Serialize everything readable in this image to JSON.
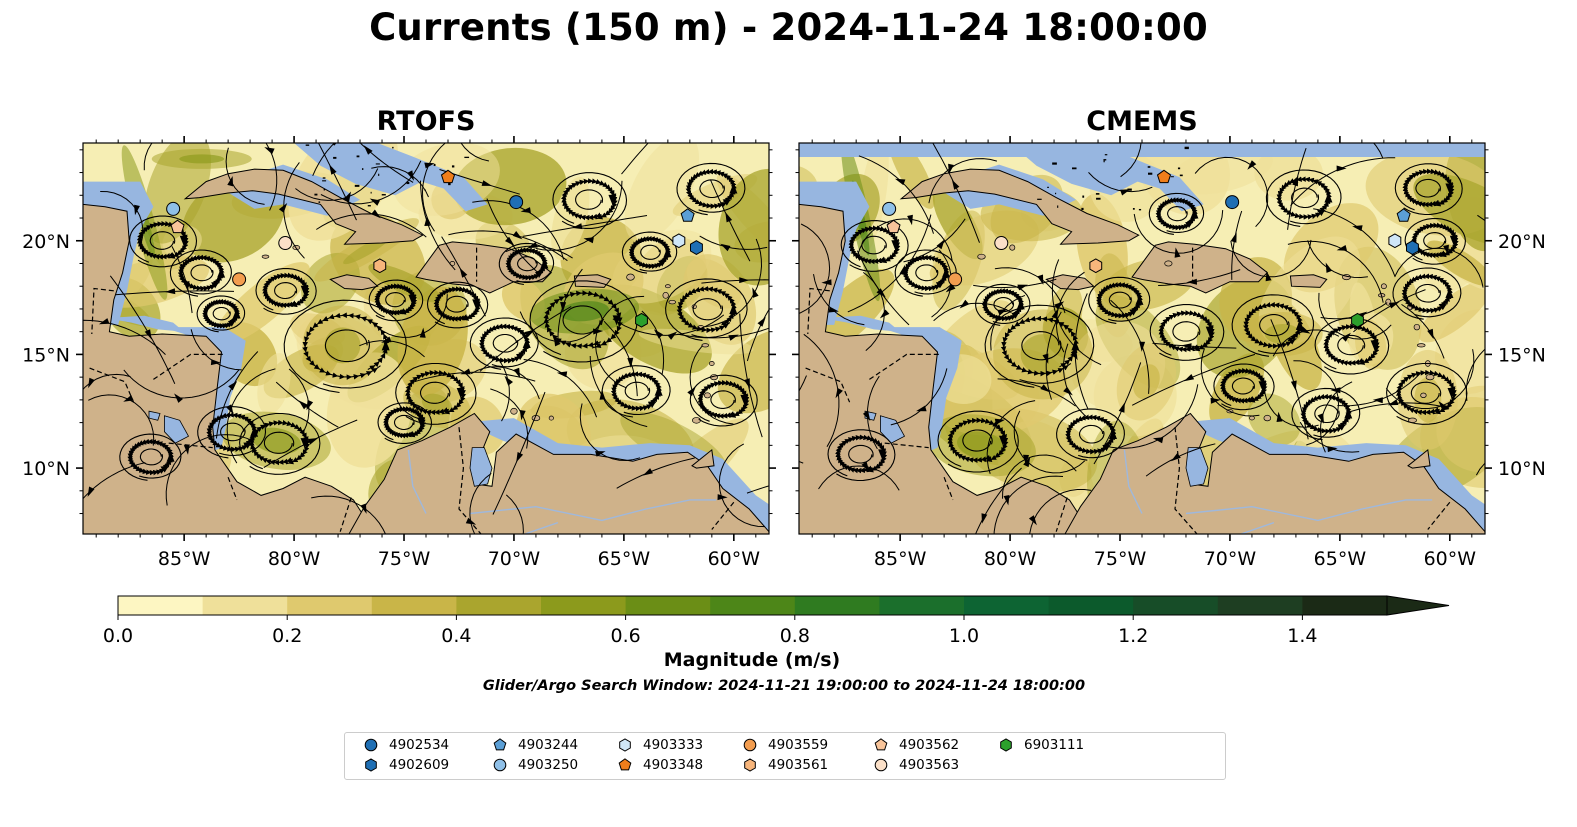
{
  "title": "Currents (150 m) - 2024-11-24 18:00:00",
  "panels": [
    {
      "title": "RTOFS"
    },
    {
      "title": "CMEMS"
    }
  ],
  "axes": {
    "lon_ticks": [
      "85°W",
      "80°W",
      "75°W",
      "70°W",
      "65°W",
      "60°W"
    ],
    "lat_ticks": [
      "20°N",
      "15°N",
      "10°N"
    ]
  },
  "colorbar": {
    "title": "Magnitude (m/s)",
    "tick_labels": [
      "0.0",
      "0.2",
      "0.4",
      "0.6",
      "0.8",
      "1.0",
      "1.2",
      "1.4"
    ],
    "range": [
      0.0,
      1.5
    ],
    "colors": [
      "#fdf6c2",
      "#efe09a",
      "#dfc96e",
      "#c9b548",
      "#aaa52e",
      "#8c9a1c",
      "#6b8e16",
      "#4d8618",
      "#2f7b20",
      "#1b6f2c",
      "#0d6433",
      "#0c5a2c",
      "#174d28",
      "#1e3e22",
      "#1b2a16"
    ]
  },
  "search_window": "Glider/Argo Search Window: 2024-11-21 19:00:00 to 2024-11-24 18:00:00",
  "legend": [
    {
      "id": "4902534",
      "marker": "circle",
      "color": "#1f6fb4"
    },
    {
      "id": "4902609",
      "marker": "hexagon",
      "color": "#1f6fb4"
    },
    {
      "id": "4903244",
      "marker": "pentagon",
      "color": "#5b9fd6"
    },
    {
      "id": "4903250",
      "marker": "circle",
      "color": "#8fc0e8"
    },
    {
      "id": "4903333",
      "marker": "hexagon",
      "color": "#cfe6f7"
    },
    {
      "id": "4903348",
      "marker": "pentagon",
      "color": "#f07e1b"
    },
    {
      "id": "4903559",
      "marker": "circle",
      "color": "#f39d4f"
    },
    {
      "id": "4903561",
      "marker": "hexagon",
      "color": "#f7b57b"
    },
    {
      "id": "4903562",
      "marker": "pentagon",
      "color": "#f8c49a"
    },
    {
      "id": "4903563",
      "marker": "circle",
      "color": "#fbe0c8"
    },
    {
      "id": "6903111",
      "marker": "hexagon",
      "color": "#2ca02c"
    }
  ],
  "colors": {
    "land": "#cfb28a",
    "water": "#97b6e0",
    "current_base": "#f6eeb4"
  },
  "floats": [
    {
      "id": "4903250",
      "lon": -85.5,
      "lat": 21.4
    },
    {
      "id": "4903562",
      "lon": -85.3,
      "lat": 20.6
    },
    {
      "id": "4903563",
      "lon": -80.4,
      "lat": 19.9
    },
    {
      "id": "4903559",
      "lon": -82.5,
      "lat": 18.3
    },
    {
      "id": "4903561",
      "lon": -76.1,
      "lat": 18.9
    },
    {
      "id": "4903348",
      "lon": -73.0,
      "lat": 22.8
    },
    {
      "id": "4902534",
      "lon": -69.9,
      "lat": 21.7
    },
    {
      "id": "4903244",
      "lon": -62.1,
      "lat": 21.1
    },
    {
      "id": "4903333",
      "lon": -62.5,
      "lat": 20.0
    },
    {
      "id": "4902609",
      "lon": -61.7,
      "lat": 19.7
    },
    {
      "id": "6903111",
      "lon": -64.2,
      "lat": 16.5
    }
  ]
}
